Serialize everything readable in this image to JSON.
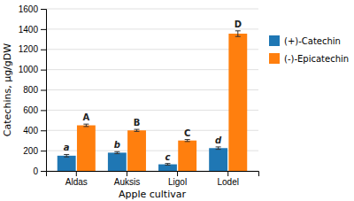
{
  "chart_data": {
    "type": "bar",
    "categories": [
      "Aldas",
      "Auksis",
      "Ligol",
      "Lodel"
    ],
    "series": [
      {
        "name": "(+)-Catechin",
        "values": [
          150,
          180,
          65,
          225
        ],
        "errors": [
          12,
          10,
          8,
          12
        ],
        "labels": [
          "a",
          "b",
          "c",
          "d"
        ]
      },
      {
        "name": "(-)-Epicatechin",
        "values": [
          450,
          400,
          300,
          1355
        ],
        "errors": [
          12,
          10,
          10,
          28
        ],
        "labels": [
          "A",
          "B",
          "C",
          "D"
        ]
      }
    ],
    "xlabel": "Apple cultivar",
    "ylabel": "Catechins, µg/gDW",
    "ylim": [
      0,
      1600
    ],
    "yticks": [
      0,
      200,
      400,
      600,
      800,
      1000,
      1200,
      1400,
      1600
    ],
    "grid": true,
    "legend": "right"
  }
}
